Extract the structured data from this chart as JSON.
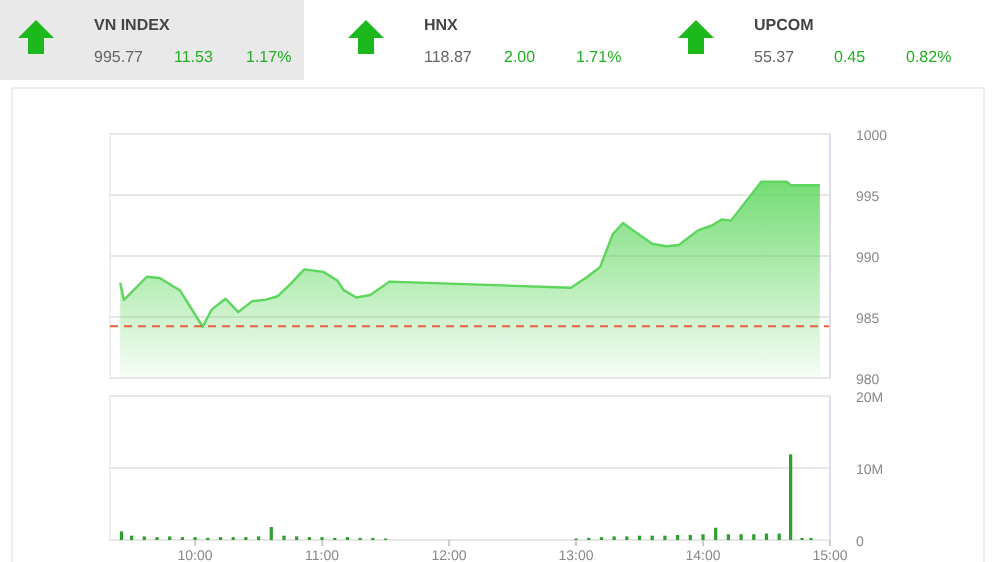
{
  "chart_data": [
    {
      "type": "other",
      "categories": [
        "VN INDEX",
        "HNX",
        "UPCOM"
      ],
      "annotations": [
        "995.77",
        "11.53",
        "1.17%",
        "118.87",
        "2.00",
        "1.71%",
        "55.37",
        "0.45",
        "0.82%"
      ]
    },
    {
      "type": "area",
      "x": [
        9.41,
        9.44,
        9.62,
        9.72,
        9.88,
        10.06,
        10.13,
        10.24,
        10.34,
        10.45,
        10.55,
        10.65,
        10.76,
        10.86,
        11.01,
        11.12,
        11.17,
        11.27,
        11.38,
        11.53,
        12.96,
        13.09,
        13.19,
        13.29,
        13.37,
        13.45,
        13.6,
        13.71,
        13.81,
        13.96,
        14.07,
        14.15,
        14.22,
        14.43,
        14.46,
        14.66,
        14.69,
        14.92
      ],
      "series": [
        {
          "color": "#5cd65c",
          "values": [
            987.8,
            986.4,
            988.3,
            988.2,
            987.2,
            984.2,
            985.6,
            986.5,
            985.4,
            986.3,
            986.4,
            986.7,
            987.8,
            988.9,
            988.7,
            988,
            987.2,
            986.6,
            986.8,
            987.9,
            987.4,
            988.3,
            989.1,
            991.8,
            992.7,
            992.1,
            991,
            990.8,
            990.9,
            992.1,
            992.5,
            993,
            992.9,
            995.7,
            996.1,
            996.1,
            995.8,
            995.8
          ]
        }
      ],
      "xlim": [
        9.33,
        15
      ],
      "ylim": [
        980,
        1000
      ],
      "yticks": [
        980,
        985,
        990,
        995,
        1000
      ],
      "grid": "y",
      "tick_labels": "y",
      "ref_lines": [
        {
          "axis": "y",
          "value": 984.24,
          "color": "#e8603c",
          "line_style": "dashed"
        }
      ]
    },
    {
      "type": "bar",
      "x": [
        9.42,
        9.5,
        9.6,
        9.7,
        9.8,
        9.9,
        10,
        10.1,
        10.2,
        10.3,
        10.4,
        10.5,
        10.6,
        10.7,
        10.8,
        10.9,
        11,
        11.1,
        11.2,
        11.3,
        11.4,
        11.5,
        13,
        13.1,
        13.2,
        13.3,
        13.4,
        13.5,
        13.6,
        13.7,
        13.8,
        13.9,
        14,
        14.1,
        14.2,
        14.3,
        14.4,
        14.5,
        14.6,
        14.69,
        14.78,
        14.85
      ],
      "series": [
        {
          "color": "#2e9e2e",
          "values": [
            1.2,
            0.6,
            0.5,
            0.4,
            0.5,
            0.4,
            0.4,
            0.3,
            0.4,
            0.4,
            0.4,
            0.5,
            1.8,
            0.6,
            0.5,
            0.4,
            0.4,
            0.3,
            0.4,
            0.3,
            0.3,
            0.2,
            0.2,
            0.3,
            0.4,
            0.5,
            0.5,
            0.6,
            0.6,
            0.6,
            0.7,
            0.7,
            0.8,
            1.7,
            0.8,
            0.8,
            0.8,
            0.9,
            0.9,
            11.9,
            0.3,
            0.3
          ]
        }
      ],
      "xlim": [
        9.33,
        15
      ],
      "xticks": [
        {
          "value": 10,
          "label": "10:00"
        },
        {
          "value": 11,
          "label": "11:00"
        },
        {
          "value": 12,
          "label": "12:00"
        },
        {
          "value": 13,
          "label": "13:00"
        },
        {
          "value": 14,
          "label": "14:00"
        },
        {
          "value": 15,
          "label": "15:00"
        }
      ],
      "ylim": [
        0,
        20
      ],
      "yticks": [
        0,
        {
          "value": 10,
          "label": "10M"
        },
        {
          "value": 20,
          "label": "20M"
        }
      ],
      "grid": "y"
    }
  ]
}
